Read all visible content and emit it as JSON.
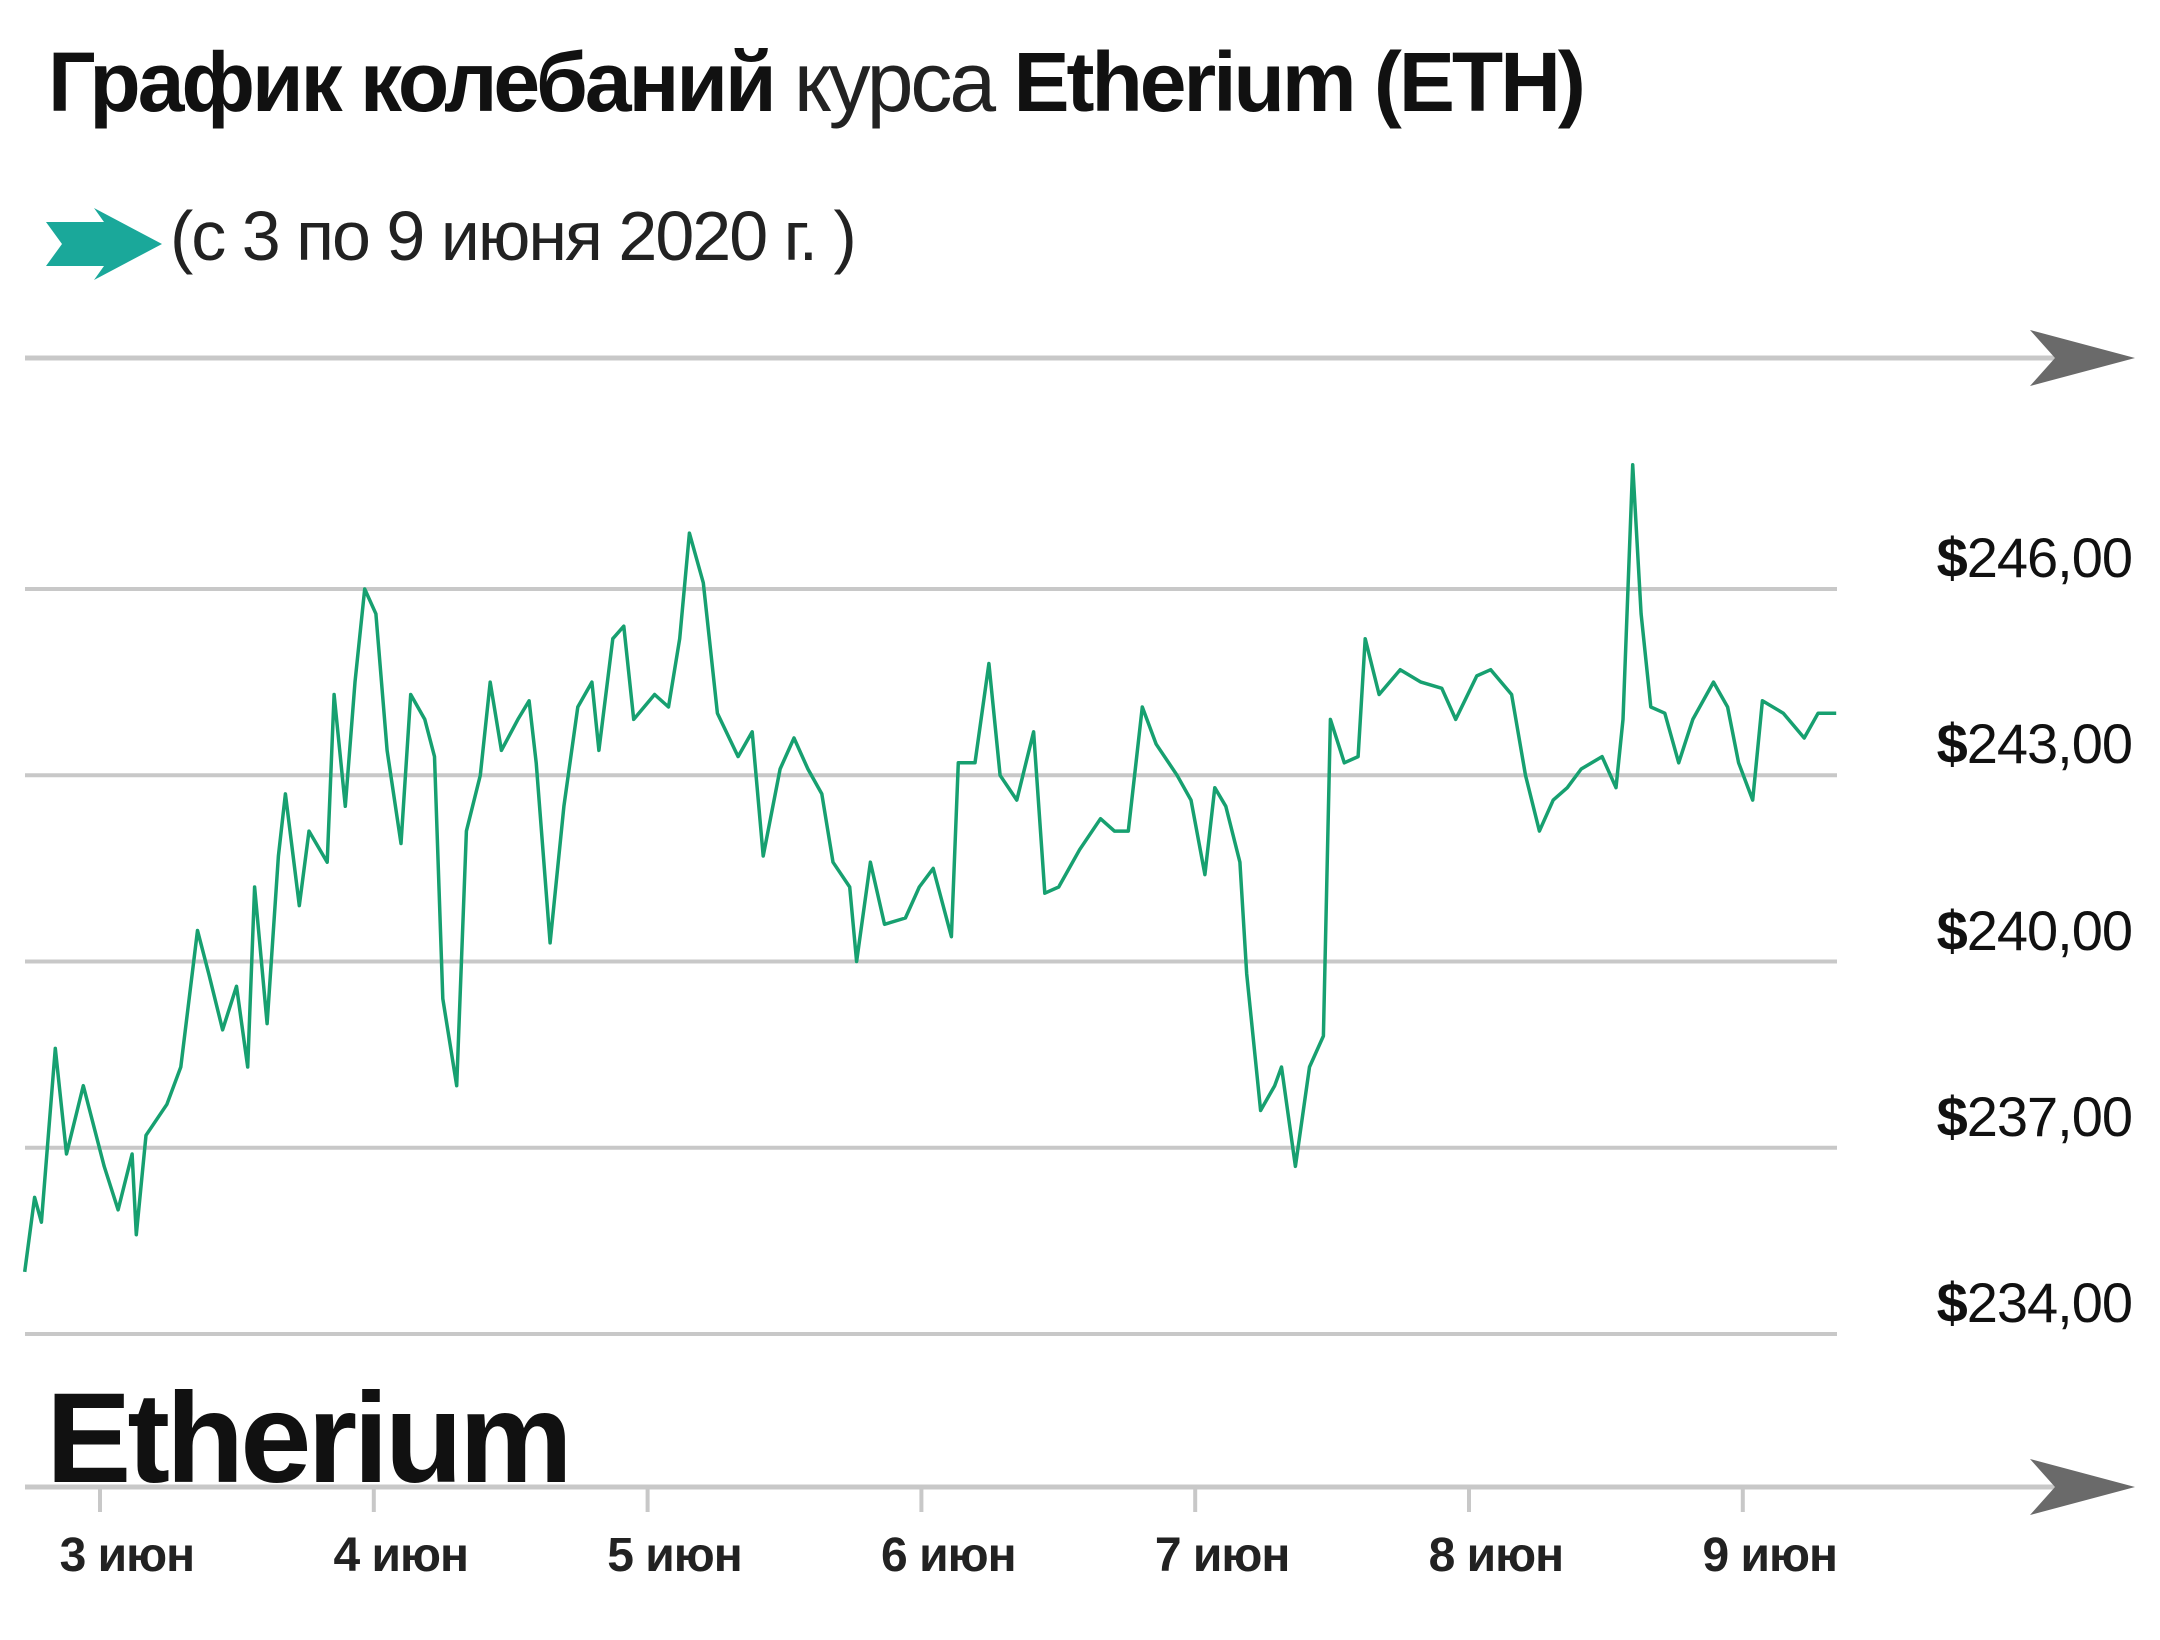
{
  "title": {
    "part1": "График колебаний",
    "part2": "курса",
    "part3": "Etherium (ETH)"
  },
  "subtitle": "(с 3 по 9 июня 2020 г. )",
  "subtitle_icon": "arrow-right-icon",
  "brand_label": "Etherium",
  "colors": {
    "line": "#17a070",
    "grid": "#c8c8c8",
    "axis_arrow": "#6a6a6a",
    "accent": "#1aa89a"
  },
  "chart_data": {
    "type": "line",
    "title": "График колебаний курса Etherium (ETH)",
    "subtitle": "(с 3 по 9 июня 2020 г. )",
    "xlabel": "",
    "ylabel": "",
    "ylim": [
      234,
      246
    ],
    "grid": true,
    "y_ticks": [
      {
        "value": 246,
        "currency": "$",
        "label": "246,00"
      },
      {
        "value": 243,
        "currency": "$",
        "label": "243,00"
      },
      {
        "value": 240,
        "currency": "$",
        "label": "240,00"
      },
      {
        "value": 237,
        "currency": "$",
        "label": "237,00"
      },
      {
        "value": 234,
        "currency": "$",
        "label": "234,00"
      }
    ],
    "x_ticks": [
      {
        "date": "2020-06-03",
        "label": "3 июн"
      },
      {
        "date": "2020-06-04",
        "label": "4 июн"
      },
      {
        "date": "2020-06-05",
        "label": "5 июн"
      },
      {
        "date": "2020-06-06",
        "label": "6 июн"
      },
      {
        "date": "2020-06-07",
        "label": "7 июн"
      },
      {
        "date": "2020-06-08",
        "label": "8 июн"
      },
      {
        "date": "2020-06-09",
        "label": "9 июн"
      }
    ],
    "series": [
      {
        "points": [
          [
            "2020-06-02T17:24",
            235.0
          ],
          [
            "2020-06-02T18:16",
            236.2
          ],
          [
            "2020-06-02T18:52",
            235.8
          ],
          [
            "2020-06-02T20:05",
            238.6
          ],
          [
            "2020-06-02T21:04",
            236.9
          ],
          [
            "2020-06-02T22:32",
            238.0
          ],
          [
            "2020-06-03T00:22",
            236.7
          ],
          [
            "2020-06-03T01:35",
            236.0
          ],
          [
            "2020-06-03T02:49",
            236.9
          ],
          [
            "2020-06-03T03:11",
            235.6
          ],
          [
            "2020-06-03T04:02",
            237.2
          ],
          [
            "2020-06-03T05:52",
            237.7
          ],
          [
            "2020-06-03T07:05",
            238.3
          ],
          [
            "2020-06-03T08:33",
            240.5
          ],
          [
            "2020-06-03T09:32",
            239.8
          ],
          [
            "2020-06-03T10:45",
            238.9
          ],
          [
            "2020-06-03T11:58",
            239.6
          ],
          [
            "2020-06-03T12:57",
            238.3
          ],
          [
            "2020-06-03T13:33",
            241.2
          ],
          [
            "2020-06-03T14:39",
            239.0
          ],
          [
            "2020-06-03T15:38",
            241.7
          ],
          [
            "2020-06-03T16:15",
            242.7
          ],
          [
            "2020-06-03T17:28",
            240.9
          ],
          [
            "2020-06-03T18:19",
            242.1
          ],
          [
            "2020-06-03T19:55",
            241.6
          ],
          [
            "2020-06-03T20:31",
            244.3
          ],
          [
            "2020-06-03T21:30",
            242.5
          ],
          [
            "2020-06-03T22:21",
            244.5
          ],
          [
            "2020-06-03T23:12",
            246.0
          ],
          [
            "2020-06-04T00:11",
            245.6
          ],
          [
            "2020-06-04T01:10",
            243.4
          ],
          [
            "2020-06-04T02:23",
            241.9
          ],
          [
            "2020-06-04T03:14",
            244.3
          ],
          [
            "2020-06-04T04:28",
            243.9
          ],
          [
            "2020-06-04T05:19",
            243.3
          ],
          [
            "2020-06-04T06:03",
            239.4
          ],
          [
            "2020-06-04T07:16",
            238.0
          ],
          [
            "2020-06-04T08:07",
            242.1
          ],
          [
            "2020-06-04T09:20",
            243.0
          ],
          [
            "2020-06-04T10:12",
            244.5
          ],
          [
            "2020-06-04T11:11",
            243.4
          ],
          [
            "2020-06-04T12:38",
            243.9
          ],
          [
            "2020-06-04T13:37",
            244.2
          ],
          [
            "2020-06-04T14:14",
            243.2
          ],
          [
            "2020-06-04T15:27",
            240.3
          ],
          [
            "2020-06-04T16:40",
            242.5
          ],
          [
            "2020-06-04T17:53",
            244.1
          ],
          [
            "2020-06-04T19:07",
            244.5
          ],
          [
            "2020-06-04T19:44",
            243.4
          ],
          [
            "2020-06-04T20:57",
            245.2
          ],
          [
            "2020-06-04T21:55",
            245.4
          ],
          [
            "2020-06-04T22:47",
            243.9
          ],
          [
            "2020-06-05T00:37",
            244.3
          ],
          [
            "2020-06-05T01:50",
            244.1
          ],
          [
            "2020-06-05T02:49",
            245.2
          ],
          [
            "2020-06-05T03:40",
            246.9
          ],
          [
            "2020-06-05T04:53",
            246.1
          ],
          [
            "2020-06-05T06:07",
            244.0
          ],
          [
            "2020-06-05T07:56",
            243.3
          ],
          [
            "2020-06-05T09:10",
            243.7
          ],
          [
            "2020-06-05T10:08",
            241.7
          ],
          [
            "2020-06-05T11:37",
            243.1
          ],
          [
            "2020-06-05T12:50",
            243.6
          ],
          [
            "2020-06-05T14:03",
            243.1
          ],
          [
            "2020-06-05T15:16",
            242.7
          ],
          [
            "2020-06-05T16:15",
            241.6
          ],
          [
            "2020-06-05T17:43",
            241.2
          ],
          [
            "2020-06-05T18:19",
            240.0
          ],
          [
            "2020-06-05T19:32",
            241.6
          ],
          [
            "2020-06-05T20:46",
            240.6
          ],
          [
            "2020-06-05T22:36",
            240.7
          ],
          [
            "2020-06-05T23:49",
            241.2
          ],
          [
            "2020-06-06T01:02",
            241.5
          ],
          [
            "2020-06-06T02:38",
            240.4
          ],
          [
            "2020-06-06T03:14",
            243.2
          ],
          [
            "2020-06-06T04:42",
            243.2
          ],
          [
            "2020-06-06T05:55",
            244.8
          ],
          [
            "2020-06-06T06:54",
            243.0
          ],
          [
            "2020-06-06T08:22",
            242.6
          ],
          [
            "2020-06-06T09:50",
            243.7
          ],
          [
            "2020-06-06T10:49",
            241.1
          ],
          [
            "2020-06-06T12:02",
            241.2
          ],
          [
            "2020-06-06T13:52",
            241.8
          ],
          [
            "2020-06-06T15:42",
            242.3
          ],
          [
            "2020-06-06T16:55",
            242.1
          ],
          [
            "2020-06-06T18:08",
            242.1
          ],
          [
            "2020-06-06T19:22",
            244.1
          ],
          [
            "2020-06-06T20:35",
            243.5
          ],
          [
            "2020-06-06T22:25",
            243.0
          ],
          [
            "2020-06-06T23:38",
            242.6
          ],
          [
            "2020-06-07T00:51",
            241.4
          ],
          [
            "2020-06-07T01:43",
            242.8
          ],
          [
            "2020-06-07T02:41",
            242.5
          ],
          [
            "2020-06-07T03:55",
            241.6
          ],
          [
            "2020-06-07T04:31",
            239.8
          ],
          [
            "2020-06-07T05:44",
            237.6
          ],
          [
            "2020-06-07T06:58",
            238.0
          ],
          [
            "2020-06-07T07:34",
            238.3
          ],
          [
            "2020-06-07T08:47",
            236.7
          ],
          [
            "2020-06-07T10:01",
            238.3
          ],
          [
            "2020-06-07T11:14",
            238.8
          ],
          [
            "2020-06-07T11:51",
            243.9
          ],
          [
            "2020-06-07T13:04",
            243.2
          ],
          [
            "2020-06-07T14:17",
            243.3
          ],
          [
            "2020-06-07T14:54",
            245.2
          ],
          [
            "2020-06-07T16:07",
            244.3
          ],
          [
            "2020-06-07T17:58",
            244.7
          ],
          [
            "2020-06-07T19:47",
            244.5
          ],
          [
            "2020-06-07T21:37",
            244.4
          ],
          [
            "2020-06-07T22:50",
            243.9
          ],
          [
            "2020-06-08T00:41",
            244.6
          ],
          [
            "2020-06-08T01:54",
            244.7
          ],
          [
            "2020-06-08T03:44",
            244.3
          ],
          [
            "2020-06-08T04:57",
            243.0
          ],
          [
            "2020-06-08T06:10",
            242.1
          ],
          [
            "2020-06-08T07:23",
            242.6
          ],
          [
            "2020-06-08T08:37",
            242.8
          ],
          [
            "2020-06-08T09:50",
            243.1
          ],
          [
            "2020-06-08T11:40",
            243.3
          ],
          [
            "2020-06-08T12:53",
            242.8
          ],
          [
            "2020-06-08T13:30",
            243.9
          ],
          [
            "2020-06-08T14:21",
            248.0
          ],
          [
            "2020-06-08T15:05",
            245.6
          ],
          [
            "2020-06-08T15:56",
            244.1
          ],
          [
            "2020-06-08T17:10",
            244.0
          ],
          [
            "2020-06-08T18:23",
            243.2
          ],
          [
            "2020-06-08T19:37",
            243.9
          ],
          [
            "2020-06-08T21:26",
            244.5
          ],
          [
            "2020-06-08T22:40",
            244.1
          ],
          [
            "2020-06-08T23:38",
            243.2
          ],
          [
            "2020-06-09T00:52",
            242.6
          ],
          [
            "2020-06-09T01:43",
            244.2
          ],
          [
            "2020-06-09T03:33",
            244.0
          ],
          [
            "2020-06-09T05:23",
            243.6
          ],
          [
            "2020-06-09T06:36",
            244.0
          ],
          [
            "2020-06-09T08:11",
            244.0
          ]
        ]
      }
    ]
  }
}
